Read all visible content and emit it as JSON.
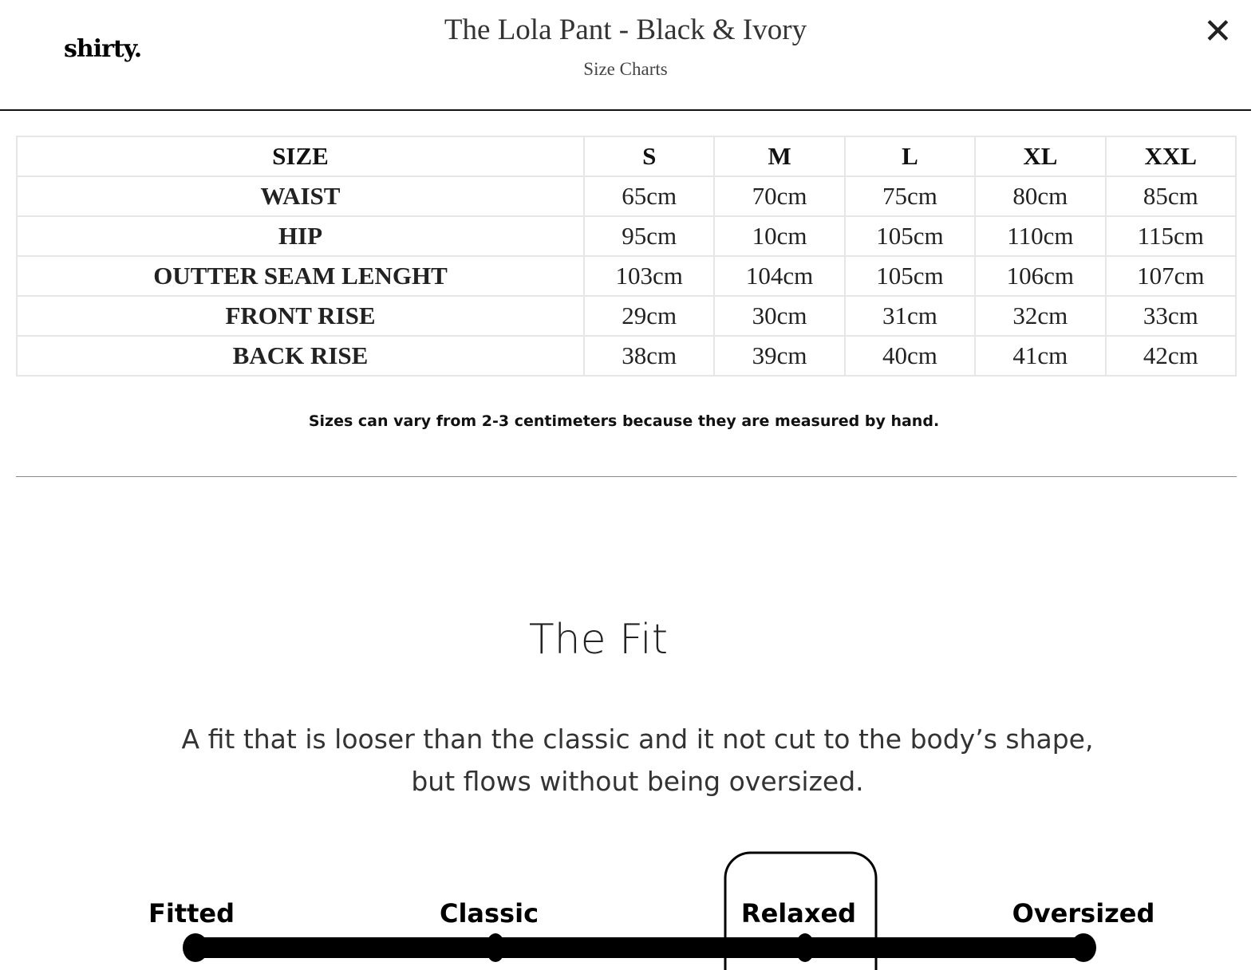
{
  "header": {
    "logo": "shirty.",
    "title": "The Lola Pant - Black & Ivory",
    "subtitle": "Size Charts",
    "close_icon": "close-icon"
  },
  "size_table": {
    "headers": [
      "SIZE",
      "S",
      "M",
      "L",
      "XL",
      "XXL"
    ],
    "rows": [
      [
        "WAIST",
        "65cm",
        "70cm",
        "75cm",
        "80cm",
        "85cm"
      ],
      [
        "HIP",
        "95cm",
        "10cm",
        "105cm",
        "110cm",
        "115cm"
      ],
      [
        "OUTTER SEAM LENGHT",
        "103cm",
        "104cm",
        "105cm",
        "106cm",
        "107cm"
      ],
      [
        "FRONT RISE",
        "29cm",
        "30cm",
        "31cm",
        "32cm",
        "33cm"
      ],
      [
        "BACK RISE",
        "38cm",
        "39cm",
        "40cm",
        "41cm",
        "42cm"
      ]
    ]
  },
  "note": "Sizes can vary from 2-3 centimeters because they are measured by hand.",
  "fit": {
    "title": "The Fit",
    "description": "A fit that is looser than the classic and it not cut to the body’s shape, but flows without being oversized.",
    "scale": [
      "Fitted",
      "Classic",
      "Relaxed",
      "Oversized"
    ],
    "selected": "Relaxed"
  }
}
